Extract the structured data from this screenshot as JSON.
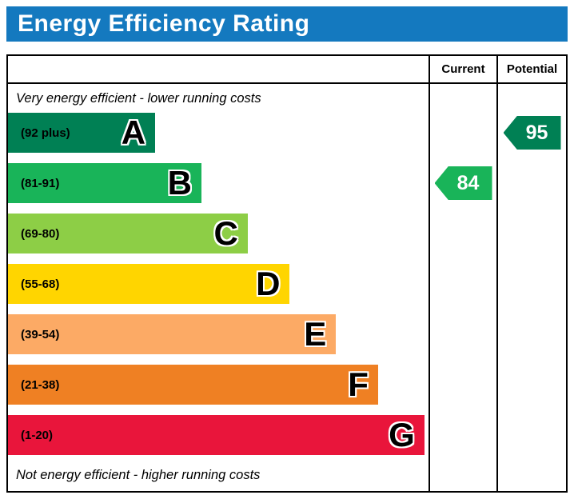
{
  "title_bar": {
    "title": "Energy Efficiency Rating",
    "bg_color": "#1479bf"
  },
  "table": {
    "current_header": "Current",
    "potential_header": "Potential"
  },
  "chart_data": {
    "type": "bar",
    "subtype": "epc-energy-efficiency-rating",
    "title": "Energy Efficiency Rating",
    "top_note": "Very energy efficient - lower running costs",
    "bottom_note": "Not energy efficient - higher running costs",
    "columns": [
      "Current",
      "Potential"
    ],
    "bands": [
      {
        "letter": "A",
        "range": "(92 plus)",
        "color": "#008054",
        "width_pct": 35
      },
      {
        "letter": "B",
        "range": "(81-91)",
        "color": "#19b459",
        "width_pct": 46
      },
      {
        "letter": "C",
        "range": "(69-80)",
        "color": "#8dce46",
        "width_pct": 57
      },
      {
        "letter": "D",
        "range": "(55-68)",
        "color": "#ffd500",
        "width_pct": 67
      },
      {
        "letter": "E",
        "range": "(39-54)",
        "color": "#fcaa65",
        "width_pct": 78
      },
      {
        "letter": "F",
        "range": "(21-38)",
        "color": "#ef8023",
        "width_pct": 88
      },
      {
        "letter": "G",
        "range": "(1-20)",
        "color": "#e9153b",
        "width_pct": 99
      }
    ],
    "current": {
      "value": 84,
      "band": "B",
      "color": "#19b459"
    },
    "potential": {
      "value": 95,
      "band": "A",
      "color": "#008054"
    }
  }
}
